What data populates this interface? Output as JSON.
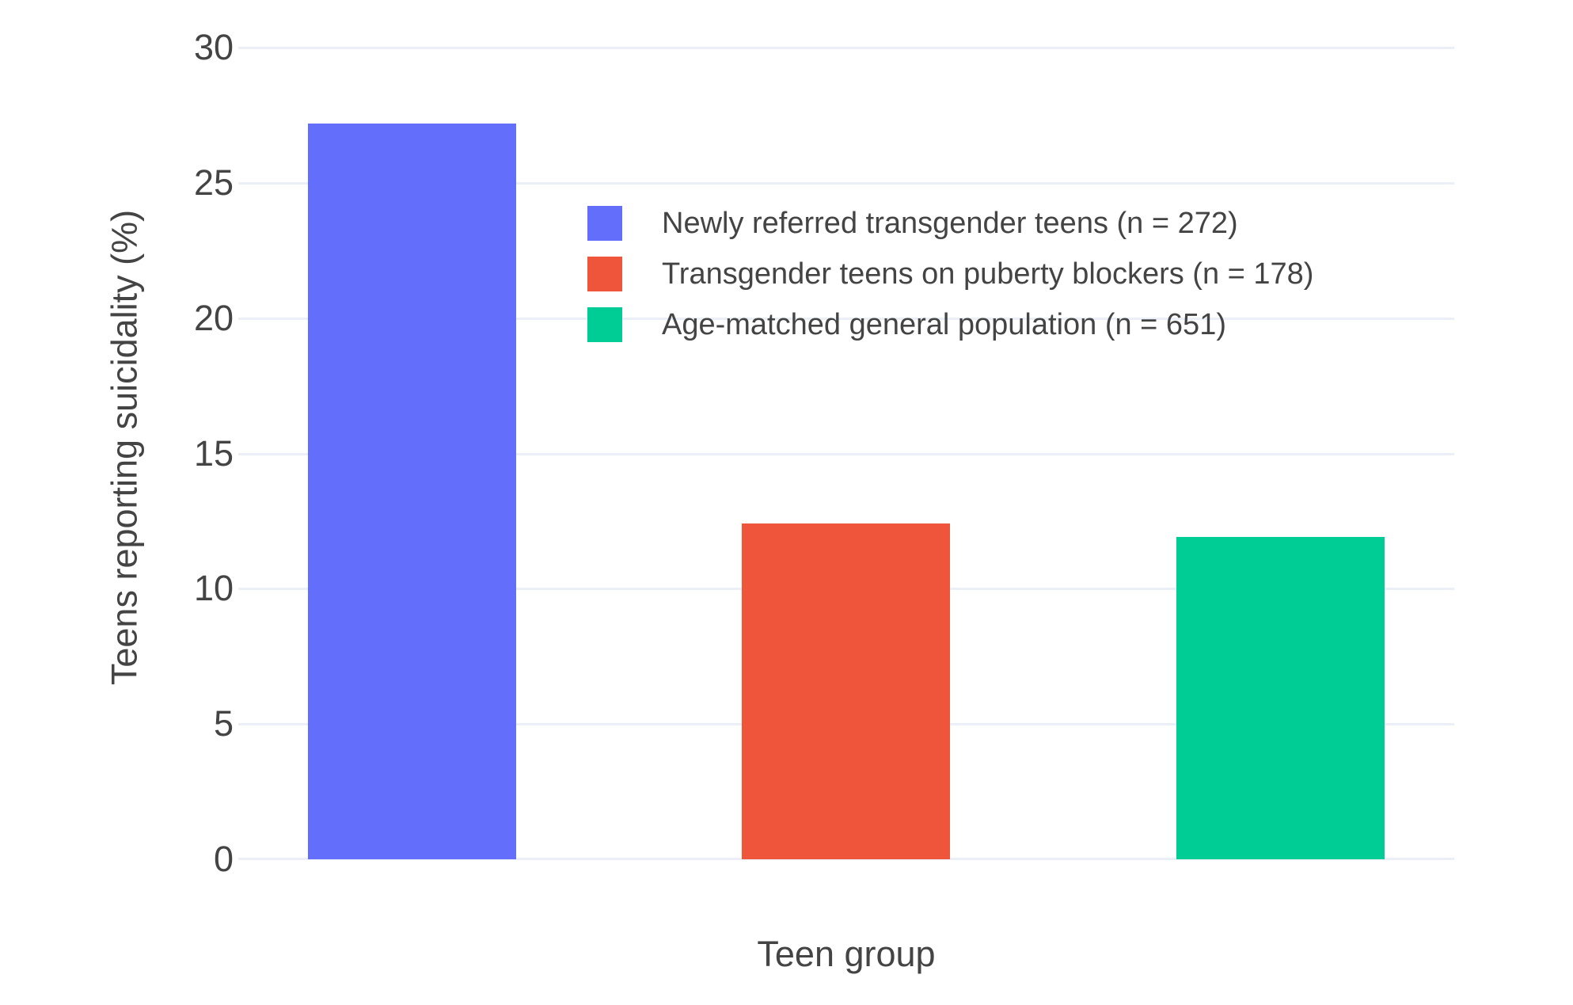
{
  "chart_data": {
    "type": "bar",
    "title": "",
    "xlabel": "Teen group",
    "ylabel": "Teens reporting suicidality (%)",
    "series": [
      {
        "name": "Newly referred transgender teens (n = 272)",
        "value": 27.2,
        "color": "#636EFA"
      },
      {
        "name": "Transgender teens on puberty blockers (n = 178)",
        "value": 12.4,
        "color": "#EF553B"
      },
      {
        "name": "Age-matched general population (n = 651)",
        "value": 11.9,
        "color": "#00CC96"
      }
    ],
    "yticks": [
      0,
      5,
      10,
      15,
      20,
      25,
      30
    ],
    "ylim": [
      0,
      30
    ],
    "x_range": [
      -0.4,
      2.4
    ],
    "bar_width_units": 0.48,
    "grid": true,
    "legend_position": "inside-upper-middle",
    "colors": {
      "grid": "#EBF0F8",
      "zeroline": "#EBF0F8",
      "text": "#444444",
      "background": "#FFFFFF"
    }
  }
}
